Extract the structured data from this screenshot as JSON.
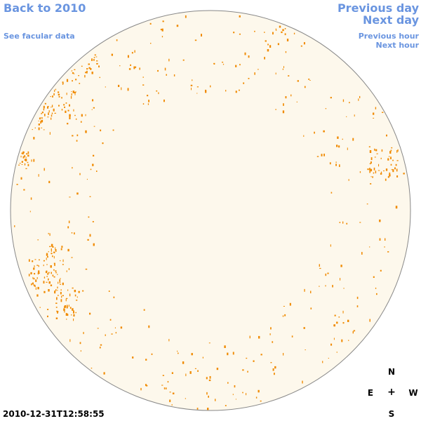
{
  "nav": {
    "back_label": "Back to 2010",
    "facular_label": "See facular data",
    "prev_day_label": "Previous day",
    "next_day_label": "Next day",
    "prev_hour_label": "Previous hour",
    "next_hour_label": "Next hour"
  },
  "timestamp": "2010-12-31T12:58:55",
  "compass": {
    "north": "N",
    "east": "E",
    "center": "+",
    "west": "W",
    "south": "S"
  },
  "colors": {
    "link": "#6a95e0",
    "disk_fill": "#fdf8ec",
    "disk_edge": "#888888",
    "feature": "#f08a00"
  }
}
